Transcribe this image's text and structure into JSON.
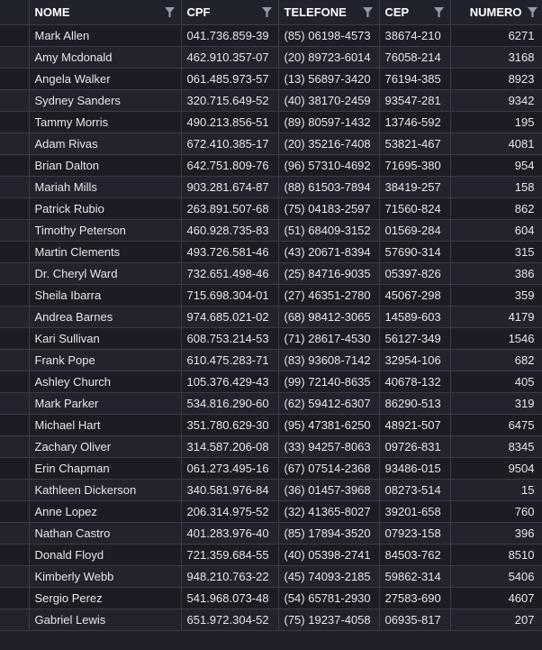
{
  "columns": {
    "nome": "NOME",
    "cpf": "CPF",
    "telefone": "TELEFONE",
    "cep": "CEP",
    "numero": "NUMERO"
  },
  "colors": {
    "header_bg": "#20222c",
    "row_bg": "#1c1d24",
    "row_alt_bg": "#22232c",
    "grid_line": "#3a3b47",
    "text": "#e6e6ec",
    "filter_icon": "#9a9aa6"
  },
  "rows": [
    {
      "nome": "Mark Allen",
      "cpf": "041.736.859-39",
      "telefone": "(85) 06198-4573",
      "cep": "38674-210",
      "numero": "6271"
    },
    {
      "nome": "Amy Mcdonald",
      "cpf": "462.910.357-07",
      "telefone": "(20) 89723-6014",
      "cep": "76058-214",
      "numero": "3168"
    },
    {
      "nome": "Angela Walker",
      "cpf": "061.485.973-57",
      "telefone": "(13) 56897-3420",
      "cep": "76194-385",
      "numero": "8923"
    },
    {
      "nome": "Sydney Sanders",
      "cpf": "320.715.649-52",
      "telefone": "(40) 38170-2459",
      "cep": "93547-281",
      "numero": "9342"
    },
    {
      "nome": "Tammy Morris",
      "cpf": "490.213.856-51",
      "telefone": "(89) 80597-1432",
      "cep": "13746-592",
      "numero": "195"
    },
    {
      "nome": "Adam Rivas",
      "cpf": "672.410.385-17",
      "telefone": "(20) 35216-7408",
      "cep": "53821-467",
      "numero": "4081"
    },
    {
      "nome": "Brian Dalton",
      "cpf": "642.751.809-76",
      "telefone": "(96) 57310-4692",
      "cep": "71695-380",
      "numero": "954"
    },
    {
      "nome": "Mariah Mills",
      "cpf": "903.281.674-87",
      "telefone": "(88) 61503-7894",
      "cep": "38419-257",
      "numero": "158"
    },
    {
      "nome": "Patrick Rubio",
      "cpf": "263.891.507-68",
      "telefone": "(75) 04183-2597",
      "cep": "71560-824",
      "numero": "862"
    },
    {
      "nome": "Timothy Peterson",
      "cpf": "460.928.735-83",
      "telefone": "(51) 68409-3152",
      "cep": "01569-284",
      "numero": "604"
    },
    {
      "nome": "Martin Clements",
      "cpf": "493.726.581-46",
      "telefone": "(43) 20671-8394",
      "cep": "57690-314",
      "numero": "315"
    },
    {
      "nome": "Dr. Cheryl Ward",
      "cpf": "732.651.498-46",
      "telefone": "(25) 84716-9035",
      "cep": "05397-826",
      "numero": "386"
    },
    {
      "nome": "Sheila Ibarra",
      "cpf": "715.698.304-01",
      "telefone": "(27) 46351-2780",
      "cep": "45067-298",
      "numero": "359"
    },
    {
      "nome": "Andrea Barnes",
      "cpf": "974.685.021-02",
      "telefone": "(68) 98412-3065",
      "cep": "14589-603",
      "numero": "4179"
    },
    {
      "nome": "Kari Sullivan",
      "cpf": "608.753.214-53",
      "telefone": "(71) 28617-4530",
      "cep": "56127-349",
      "numero": "1546"
    },
    {
      "nome": "Frank Pope",
      "cpf": "610.475.283-71",
      "telefone": "(83) 93608-7142",
      "cep": "32954-106",
      "numero": "682"
    },
    {
      "nome": "Ashley Church",
      "cpf": "105.376.429-43",
      "telefone": "(99) 72140-8635",
      "cep": "40678-132",
      "numero": "405"
    },
    {
      "nome": "Mark Parker",
      "cpf": "534.816.290-60",
      "telefone": "(62) 59412-6307",
      "cep": "86290-513",
      "numero": "319"
    },
    {
      "nome": "Michael Hart",
      "cpf": "351.780.629-30",
      "telefone": "(95) 47381-6250",
      "cep": "48921-507",
      "numero": "6475"
    },
    {
      "nome": "Zachary Oliver",
      "cpf": "314.587.206-08",
      "telefone": "(33) 94257-8063",
      "cep": "09726-831",
      "numero": "8345"
    },
    {
      "nome": "Erin Chapman",
      "cpf": "061.273.495-16",
      "telefone": "(67) 07514-2368",
      "cep": "93486-015",
      "numero": "9504"
    },
    {
      "nome": "Kathleen Dickerson",
      "cpf": "340.581.976-84",
      "telefone": "(36) 01457-3968",
      "cep": "08273-514",
      "numero": "15"
    },
    {
      "nome": "Anne Lopez",
      "cpf": "206.314.975-52",
      "telefone": "(32) 41365-8027",
      "cep": "39201-658",
      "numero": "760"
    },
    {
      "nome": "Nathan Castro",
      "cpf": "401.283.976-40",
      "telefone": "(85) 17894-3520",
      "cep": "07923-158",
      "numero": "396"
    },
    {
      "nome": "Donald Floyd",
      "cpf": "721.359.684-55",
      "telefone": "(40) 05398-2741",
      "cep": "84503-762",
      "numero": "8510"
    },
    {
      "nome": "Kimberly Webb",
      "cpf": "948.210.763-22",
      "telefone": "(45) 74093-2185",
      "cep": "59862-314",
      "numero": "5406"
    },
    {
      "nome": "Sergio Perez",
      "cpf": "541.968.073-48",
      "telefone": "(54) 65781-2930",
      "cep": "27583-690",
      "numero": "4607"
    },
    {
      "nome": "Gabriel Lewis",
      "cpf": "651.972.304-52",
      "telefone": "(75) 19237-4058",
      "cep": "06935-817",
      "numero": "207"
    }
  ]
}
